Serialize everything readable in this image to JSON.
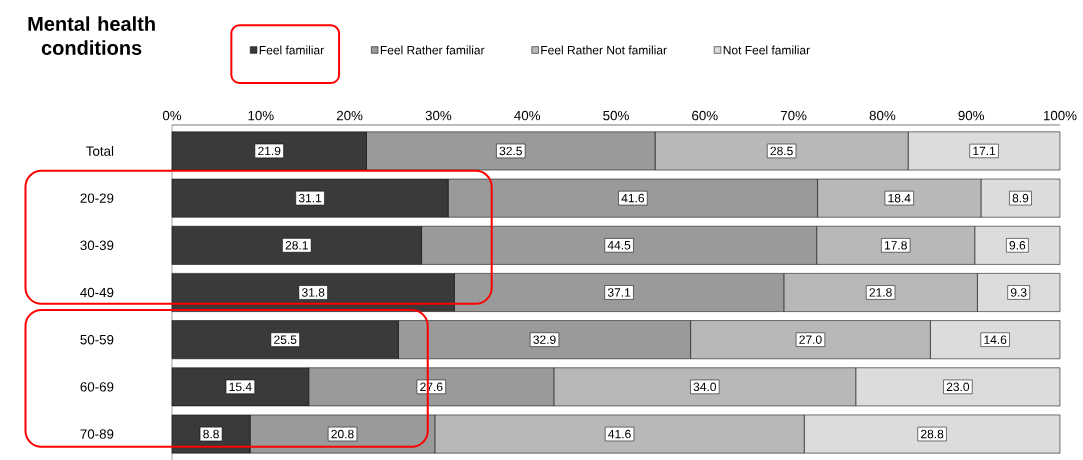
{
  "chart_data": {
    "type": "bar",
    "orientation": "horizontal",
    "stacked": true,
    "title": "Mental health conditions",
    "legend": "top",
    "categories": [
      "Total",
      "20-29",
      "30-39",
      "40-49",
      "50-59",
      "60-69",
      "70-89"
    ],
    "xlim": [
      0,
      100
    ],
    "xticks": [
      {
        "value": 0,
        "label": "0%"
      },
      {
        "value": 10,
        "label": "10%"
      },
      {
        "value": 20,
        "label": "20%"
      },
      {
        "value": 30,
        "label": "30%"
      },
      {
        "value": 40,
        "label": "40%"
      },
      {
        "value": 50,
        "label": "50%"
      },
      {
        "value": 60,
        "label": "60%"
      },
      {
        "value": 70,
        "label": "70%"
      },
      {
        "value": 80,
        "label": "80%"
      },
      {
        "value": 90,
        "label": "90%"
      },
      {
        "value": 100,
        "label": "100%"
      }
    ],
    "series": [
      {
        "name": "Feel familiar",
        "color": "#3a3a3a",
        "values": [
          21.9,
          31.1,
          28.1,
          31.8,
          25.5,
          15.4,
          8.8
        ],
        "value_labels": [
          "21.9",
          "31.1",
          "28.1",
          "31.8",
          "25.5",
          "15.4",
          "8.8"
        ]
      },
      {
        "name": "Feel Rather familiar",
        "color": "#9a9a9a",
        "values": [
          32.5,
          41.6,
          44.5,
          37.1,
          32.9,
          27.6,
          20.8
        ],
        "value_labels": [
          "32.5",
          "41.6",
          "44.5",
          "37.1",
          "32.9",
          "27.6",
          "20.8"
        ]
      },
      {
        "name": "Feel Rather Not familiar",
        "color": "#b8b8b8",
        "values": [
          28.5,
          18.4,
          17.8,
          21.8,
          27.0,
          34.0,
          41.6
        ],
        "value_labels": [
          "28.5",
          "18.4",
          "17.8",
          "21.8",
          "27.0",
          "34.0",
          "41.6"
        ]
      },
      {
        "name": "Not Feel familiar",
        "color": "#dcdcdc",
        "values": [
          17.1,
          8.9,
          9.6,
          9.3,
          14.6,
          23.0,
          28.8
        ],
        "value_labels": [
          "17.1",
          "8.9",
          "9.6",
          "9.3",
          "14.6",
          "23.0",
          "28.8"
        ]
      }
    ]
  }
}
